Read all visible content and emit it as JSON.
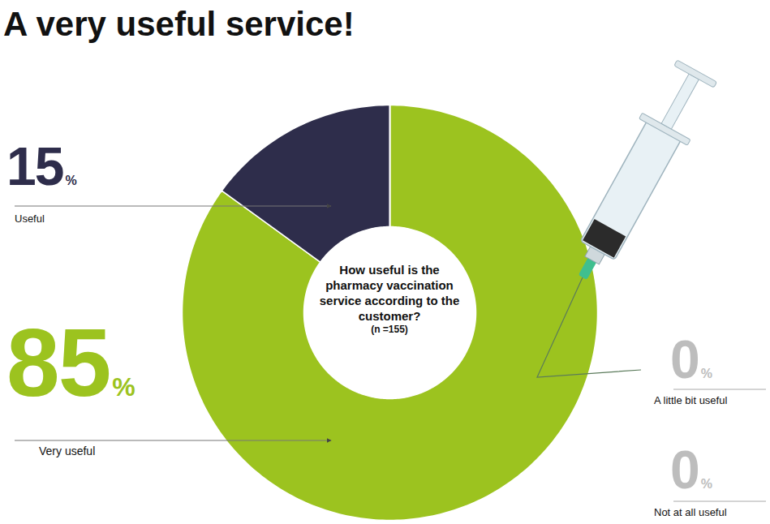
{
  "chart_data": {
    "type": "donut",
    "title": "A very useful service!",
    "subtitle": "How useful is the pharmacy vaccination service according to the customer?",
    "annotations": [
      "(n =155)"
    ],
    "categories": [
      "Very useful",
      "Useful",
      "A little bit useful",
      "Not at all useful"
    ],
    "values": [
      85,
      15,
      0,
      0
    ],
    "value_labels": [
      "85%",
      "15%",
      "0%",
      "0%"
    ],
    "colors": [
      "#9cc31f",
      "#2e2d4b",
      "#bdbdbd",
      "#bdbdbd"
    ],
    "data_labels": true
  }
}
